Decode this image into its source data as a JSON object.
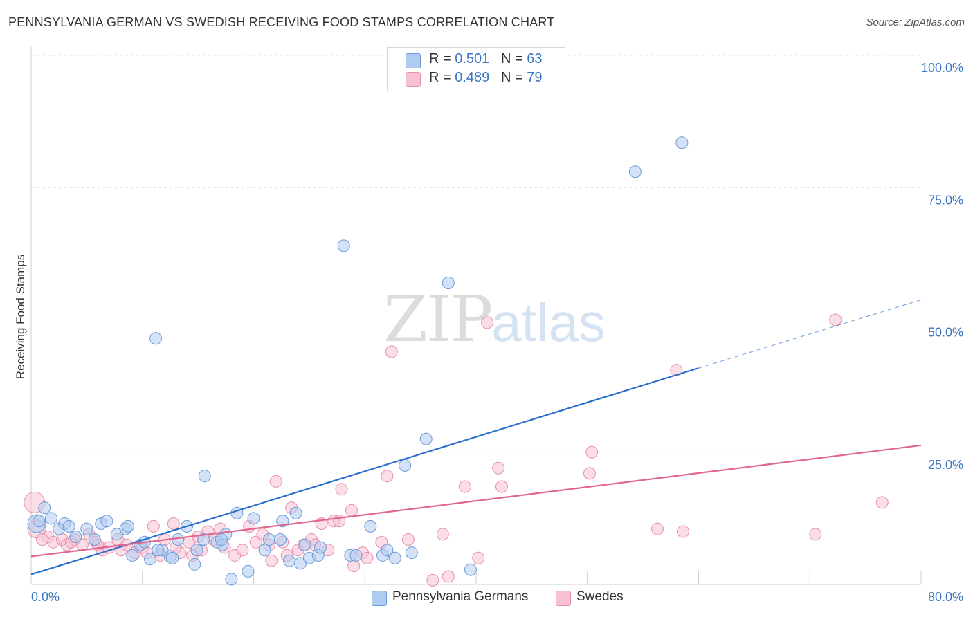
{
  "title": "PENNSYLVANIA GERMAN VS SWEDISH RECEIVING FOOD STAMPS CORRELATION CHART",
  "source": "Source: ZipAtlas.com",
  "watermark": {
    "zip": "ZIP",
    "atlas": "atlas"
  },
  "legend": {
    "series1": {
      "r_label": "R = ",
      "r_value": "0.501",
      "n_label": "N = ",
      "n_value": "63"
    },
    "series2": {
      "r_label": "R = ",
      "r_value": "0.489",
      "n_label": "N = ",
      "n_value": "79"
    }
  },
  "colors": {
    "blue_fill": "#aecbf0",
    "blue_stroke": "#6b9bd8",
    "blue_line": "#2a6fcb",
    "pink_fill": "#f7c1d3",
    "pink_stroke": "#e88fab",
    "pink_line": "#e0668f",
    "axis_text": "#3a75c4",
    "grid": "#e0e0e0"
  },
  "chart_data": {
    "type": "scatter",
    "title": "PENNSYLVANIA GERMAN VS SWEDISH RECEIVING FOOD STAMPS CORRELATION CHART",
    "xlabel": "",
    "ylabel": "Receiving Food Stamps",
    "xlim": [
      0,
      80
    ],
    "ylim": [
      0,
      100
    ],
    "x_tick_labels": [
      "0.0%",
      "80.0%"
    ],
    "y_tick_labels": [
      {
        "value": 25,
        "label": "25.0%"
      },
      {
        "value": 50,
        "label": "50.0%"
      },
      {
        "value": 75,
        "label": "75.0%"
      },
      {
        "value": 100,
        "label": "100.0%"
      }
    ],
    "series": [
      {
        "name": "Pennsylvania Germans",
        "r": 0.501,
        "n": 63,
        "trend": {
          "x0": 0,
          "y0": 1.9,
          "x1": 60,
          "y1": 40.9,
          "dashed_to_x": 80,
          "dashed_to_y": 53.8
        },
        "points": [
          [
            0.5,
            11.5
          ],
          [
            0.7,
            12
          ],
          [
            1.2,
            14.5
          ],
          [
            1.8,
            12.5
          ],
          [
            2.5,
            10.5
          ],
          [
            3.0,
            11.5
          ],
          [
            3.4,
            11.0
          ],
          [
            4.0,
            9.0
          ],
          [
            5.0,
            10.5
          ],
          [
            5.7,
            8.5
          ],
          [
            6.3,
            11.5
          ],
          [
            6.8,
            12.0
          ],
          [
            7.7,
            9.5
          ],
          [
            8.5,
            10.5
          ],
          [
            8.7,
            11.0
          ],
          [
            9.1,
            5.5
          ],
          [
            9.8,
            7.5
          ],
          [
            10.2,
            8.0
          ],
          [
            10.7,
            4.8
          ],
          [
            11.2,
            46.5
          ],
          [
            11.8,
            6.5
          ],
          [
            12.5,
            5.3
          ],
          [
            12.7,
            5.0
          ],
          [
            13.2,
            8.5
          ],
          [
            14.0,
            11.0
          ],
          [
            14.7,
            3.8
          ],
          [
            14.9,
            6.5
          ],
          [
            15.5,
            8.5
          ],
          [
            15.6,
            20.5
          ],
          [
            16.7,
            8.0
          ],
          [
            17.2,
            7.5
          ],
          [
            17.5,
            9.5
          ],
          [
            18.0,
            1.0
          ],
          [
            18.5,
            13.5
          ],
          [
            19.5,
            2.5
          ],
          [
            20.0,
            12.5
          ],
          [
            21.0,
            6.5
          ],
          [
            21.4,
            8.5
          ],
          [
            22.6,
            12.0
          ],
          [
            23.2,
            4.5
          ],
          [
            23.8,
            13.5
          ],
          [
            24.2,
            4.0
          ],
          [
            24.6,
            7.5
          ],
          [
            25.0,
            5.0
          ],
          [
            25.8,
            5.5
          ],
          [
            26.0,
            7.0
          ],
          [
            28.1,
            64.0
          ],
          [
            28.7,
            5.5
          ],
          [
            29.2,
            5.5
          ],
          [
            30.5,
            11.0
          ],
          [
            31.6,
            5.5
          ],
          [
            32.0,
            6.5
          ],
          [
            32.7,
            5.0
          ],
          [
            33.6,
            22.5
          ],
          [
            34.2,
            6.0
          ],
          [
            35.5,
            27.5
          ],
          [
            37.5,
            57.0
          ],
          [
            39.5,
            2.8
          ],
          [
            54.3,
            78.0
          ],
          [
            58.5,
            83.5
          ],
          [
            11.4,
            6.5
          ],
          [
            22.4,
            8.5
          ],
          [
            17.1,
            8.5
          ]
        ]
      },
      {
        "name": "Swedes",
        "r": 0.489,
        "n": 79,
        "trend": {
          "x0": 0,
          "y0": 5.3,
          "x1": 80,
          "y1": 26.3
        },
        "points": [
          [
            0.3,
            15.5
          ],
          [
            0.5,
            10.5
          ],
          [
            1.5,
            9.0
          ],
          [
            2.0,
            8.0
          ],
          [
            2.8,
            8.5
          ],
          [
            3.2,
            7.5
          ],
          [
            3.9,
            8.5
          ],
          [
            4.6,
            7.5
          ],
          [
            5.2,
            9.5
          ],
          [
            5.8,
            8.0
          ],
          [
            6.4,
            6.5
          ],
          [
            7.0,
            7.0
          ],
          [
            7.8,
            8.5
          ],
          [
            8.1,
            6.5
          ],
          [
            8.6,
            7.5
          ],
          [
            9.3,
            6.0
          ],
          [
            10.0,
            7.0
          ],
          [
            10.4,
            6.0
          ],
          [
            11.0,
            11.0
          ],
          [
            11.6,
            5.5
          ],
          [
            12.0,
            8.5
          ],
          [
            12.8,
            11.5
          ],
          [
            13.4,
            6.0
          ],
          [
            14.2,
            8.0
          ],
          [
            14.5,
            5.5
          ],
          [
            15.0,
            9.0
          ],
          [
            15.3,
            6.5
          ],
          [
            15.9,
            10.0
          ],
          [
            16.4,
            8.5
          ],
          [
            17.0,
            10.5
          ],
          [
            17.4,
            7.0
          ],
          [
            18.3,
            5.5
          ],
          [
            19.0,
            6.5
          ],
          [
            19.6,
            11.0
          ],
          [
            20.2,
            8.0
          ],
          [
            20.8,
            9.5
          ],
          [
            21.4,
            7.5
          ],
          [
            21.6,
            4.5
          ],
          [
            22.0,
            19.5
          ],
          [
            22.6,
            8.0
          ],
          [
            23.0,
            5.5
          ],
          [
            23.4,
            14.5
          ],
          [
            24.0,
            6.5
          ],
          [
            24.5,
            7.5
          ],
          [
            25.2,
            8.5
          ],
          [
            26.1,
            11.5
          ],
          [
            26.7,
            6.5
          ],
          [
            27.2,
            12.0
          ],
          [
            27.7,
            12.0
          ],
          [
            27.9,
            18.0
          ],
          [
            28.8,
            14.0
          ],
          [
            29.0,
            3.5
          ],
          [
            29.8,
            6.0
          ],
          [
            30.2,
            5.0
          ],
          [
            31.5,
            8.0
          ],
          [
            32.0,
            20.5
          ],
          [
            32.4,
            44.0
          ],
          [
            33.9,
            8.5
          ],
          [
            36.1,
            0.8
          ],
          [
            37.0,
            9.5
          ],
          [
            37.5,
            1.5
          ],
          [
            39.0,
            18.5
          ],
          [
            40.2,
            5.0
          ],
          [
            41.0,
            49.5
          ],
          [
            42.0,
            22.0
          ],
          [
            42.3,
            18.5
          ],
          [
            50.2,
            21.0
          ],
          [
            50.4,
            25.0
          ],
          [
            56.3,
            10.5
          ],
          [
            58.0,
            40.5
          ],
          [
            58.6,
            10.0
          ],
          [
            70.5,
            9.5
          ],
          [
            72.3,
            50.0
          ],
          [
            76.5,
            15.5
          ],
          [
            1.0,
            8.5
          ],
          [
            3.6,
            8.0
          ],
          [
            6.0,
            7.5
          ],
          [
            13.0,
            7.0
          ],
          [
            25.5,
            7.5
          ]
        ]
      }
    ]
  },
  "bottom_legend": [
    "Pennsylvania Germans",
    "Swedes"
  ]
}
